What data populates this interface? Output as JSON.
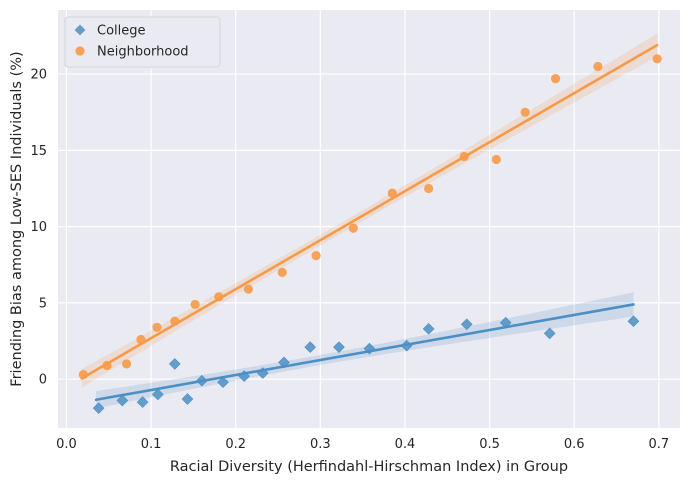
{
  "chart_data": {
    "type": "scatter",
    "xlabel": "Racial Diversity (Herfindahl-Hirschman Index) in Group",
    "ylabel": "Friending Bias among Low-SES Individuals (%)",
    "xlim": [
      -0.01,
      0.725
    ],
    "ylim": [
      -3.2,
      24.2
    ],
    "xticks": [
      0.0,
      0.1,
      0.2,
      0.3,
      0.4,
      0.5,
      0.6,
      0.7
    ],
    "xtick_labels": [
      "0.0",
      "0.1",
      "0.2",
      "0.3",
      "0.4",
      "0.5",
      "0.6",
      "0.7"
    ],
    "yticks": [
      0,
      5,
      10,
      15,
      20
    ],
    "ytick_labels": [
      "0",
      "5",
      "10",
      "15",
      "20"
    ],
    "grid": true,
    "legend_position": "top-left",
    "series": [
      {
        "name": "College",
        "marker": "diamond",
        "color": "#4c8fc4",
        "points": [
          [
            0.038,
            -1.9
          ],
          [
            0.066,
            -1.4
          ],
          [
            0.09,
            -1.5
          ],
          [
            0.108,
            -1.0
          ],
          [
            0.128,
            1.0
          ],
          [
            0.143,
            -1.3
          ],
          [
            0.16,
            -0.1
          ],
          [
            0.185,
            -0.2
          ],
          [
            0.21,
            0.2
          ],
          [
            0.232,
            0.4
          ],
          [
            0.257,
            1.1
          ],
          [
            0.288,
            2.1
          ],
          [
            0.322,
            2.1
          ],
          [
            0.358,
            2.0
          ],
          [
            0.402,
            2.2
          ],
          [
            0.428,
            3.3
          ],
          [
            0.473,
            3.6
          ],
          [
            0.519,
            3.7
          ],
          [
            0.571,
            3.0
          ],
          [
            0.67,
            3.8
          ]
        ],
        "fit": {
          "x": [
            0.035,
            0.67
          ],
          "y": [
            -1.35,
            4.9
          ]
        }
      },
      {
        "name": "Neighborhood",
        "marker": "circle",
        "color": "#f79a47",
        "points": [
          [
            0.02,
            0.3
          ],
          [
            0.048,
            0.9
          ],
          [
            0.071,
            1.0
          ],
          [
            0.088,
            2.6
          ],
          [
            0.107,
            3.4
          ],
          [
            0.128,
            3.8
          ],
          [
            0.152,
            4.9
          ],
          [
            0.18,
            5.4
          ],
          [
            0.215,
            5.9
          ],
          [
            0.255,
            7.0
          ],
          [
            0.295,
            8.1
          ],
          [
            0.339,
            9.9
          ],
          [
            0.385,
            12.2
          ],
          [
            0.428,
            12.5
          ],
          [
            0.47,
            14.6
          ],
          [
            0.508,
            14.4
          ],
          [
            0.542,
            17.5
          ],
          [
            0.578,
            19.7
          ],
          [
            0.628,
            20.5
          ],
          [
            0.698,
            21.0
          ]
        ],
        "fit": {
          "x": [
            0.018,
            0.698
          ],
          "y": [
            0.05,
            21.9
          ]
        }
      }
    ]
  }
}
